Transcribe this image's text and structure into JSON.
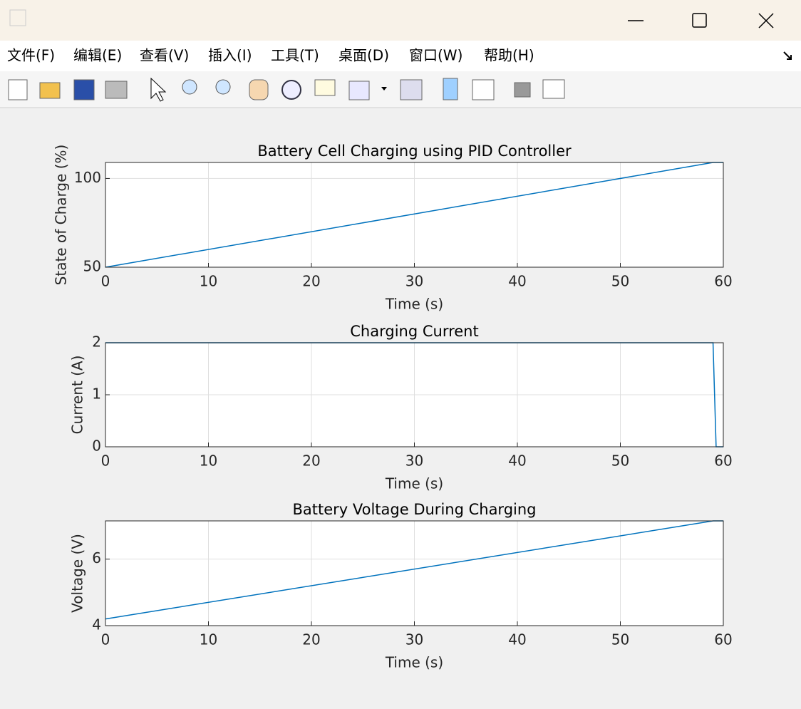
{
  "menu": [
    "文件(F)",
    "编辑(E)",
    "查看(V)",
    "插入(I)",
    "工具(T)",
    "桌面(D)",
    "窗口(W)",
    "帮助(H)"
  ],
  "chart_data": [
    {
      "type": "line",
      "title": "Battery Cell Charging using PID Controller",
      "xlabel": "Time (s)",
      "ylabel": "State of Charge (%)",
      "x": [
        0,
        59,
        60
      ],
      "values": [
        50,
        109,
        109
      ],
      "color": "#0072bd",
      "xlim": [
        0,
        60
      ],
      "xticks": [
        0,
        10,
        20,
        30,
        40,
        50,
        60
      ],
      "ylim": [
        50,
        109
      ],
      "yticks": [
        50,
        100
      ],
      "grid": true
    },
    {
      "type": "line",
      "title": "Charging Current",
      "xlabel": "Time (s)",
      "ylabel": "Current (A)",
      "x": [
        0,
        59,
        59.3,
        60
      ],
      "values": [
        2,
        2,
        0,
        0
      ],
      "color": "#0072bd",
      "xlim": [
        0,
        60
      ],
      "xticks": [
        0,
        10,
        20,
        30,
        40,
        50,
        60
      ],
      "ylim": [
        0,
        2
      ],
      "yticks": [
        0,
        1,
        2
      ],
      "grid": true
    },
    {
      "type": "line",
      "title": "Battery Voltage During Charging",
      "xlabel": "Time (s)",
      "ylabel": "Voltage (V)",
      "x": [
        0,
        59,
        60
      ],
      "values": [
        4.2,
        7.15,
        7.15
      ],
      "color": "#0072bd",
      "xlim": [
        0,
        60
      ],
      "xticks": [
        0,
        10,
        20,
        30,
        40,
        50,
        60
      ],
      "ylim": [
        4,
        7.15
      ],
      "yticks": [
        4,
        6
      ],
      "grid": true
    }
  ]
}
